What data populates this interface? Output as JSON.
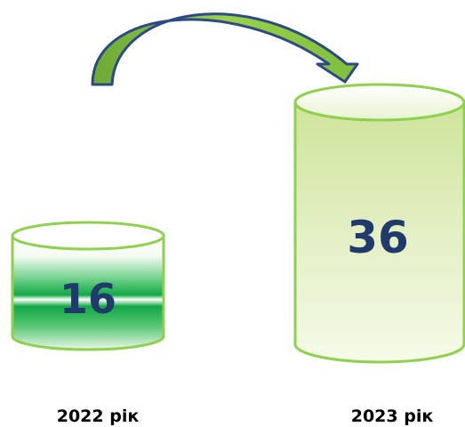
{
  "items": [
    {
      "year_label": "2022 рік",
      "value": "16"
    },
    {
      "year_label": "2023 рік",
      "value": "36"
    }
  ],
  "arrow": {
    "from": "2022 рік",
    "to": "2023 рік"
  },
  "colors": {
    "cylinder_outline": "#8fd14f",
    "cylinder_2022_fill": "#1fb24a",
    "cylinder_2023_fill": "#dcebb4",
    "value_text": "#1f3a6b",
    "arrow_fill": "#8cc43f",
    "arrow_outline": "#2e4a86"
  }
}
